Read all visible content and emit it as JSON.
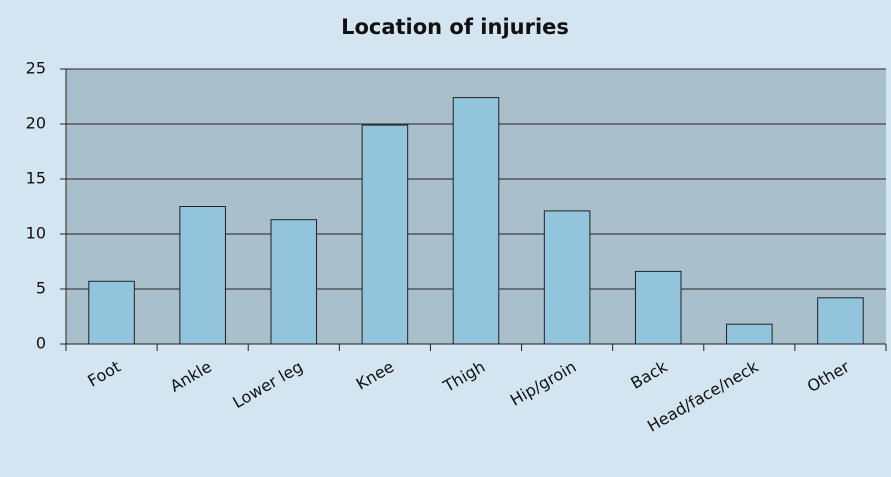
{
  "chart_data": {
    "type": "bar",
    "title": "Location of injuries",
    "categories": [
      "Foot",
      "Ankle",
      "Lower leg",
      "Knee",
      "Thigh",
      "Hip/groin",
      "Back",
      "Head/face/neck",
      "Other"
    ],
    "values": [
      5.7,
      12.5,
      11.3,
      19.9,
      22.4,
      12.1,
      6.6,
      1.8,
      4.2
    ],
    "color": "#92c4dc",
    "ylim": [
      0,
      25
    ],
    "yticks": [
      0,
      5,
      10,
      15,
      20,
      25
    ],
    "grid": true
  }
}
